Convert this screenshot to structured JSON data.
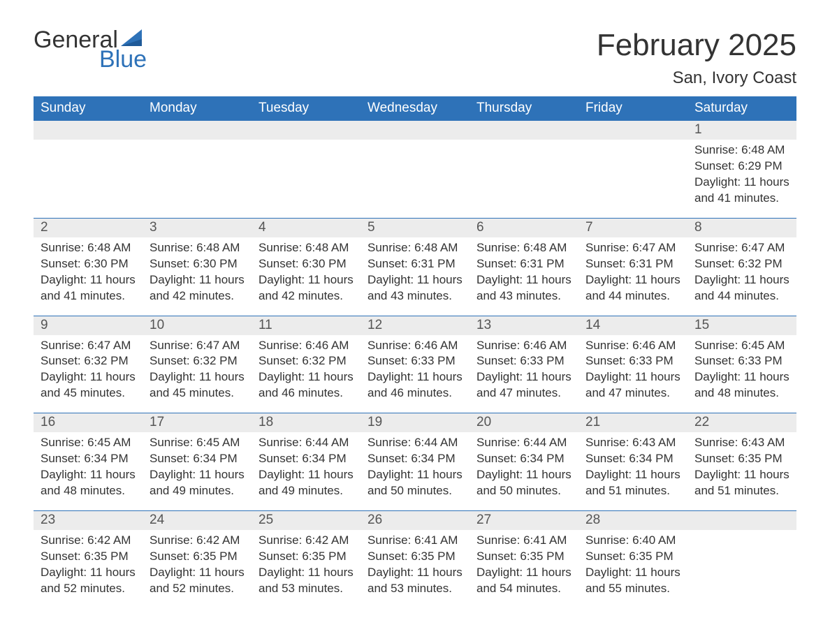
{
  "brand": {
    "word1": "General",
    "word2": "Blue",
    "accent_color": "#2e72b8"
  },
  "title": "February 2025",
  "location": "San, Ivory Coast",
  "day_headers": [
    "Sunday",
    "Monday",
    "Tuesday",
    "Wednesday",
    "Thursday",
    "Friday",
    "Saturday"
  ],
  "colors": {
    "header_bg": "#2e72b8",
    "header_text": "#ffffff",
    "row_bg": "#ececec",
    "text": "#333333",
    "week_divider": "#2e72b8"
  },
  "weeks": [
    {
      "days": [
        {},
        {},
        {},
        {},
        {},
        {},
        {
          "num": "1",
          "sunrise": "Sunrise: 6:48 AM",
          "sunset": "Sunset: 6:29 PM",
          "daylight": "Daylight: 11 hours and 41 minutes."
        }
      ]
    },
    {
      "days": [
        {
          "num": "2",
          "sunrise": "Sunrise: 6:48 AM",
          "sunset": "Sunset: 6:30 PM",
          "daylight": "Daylight: 11 hours and 41 minutes."
        },
        {
          "num": "3",
          "sunrise": "Sunrise: 6:48 AM",
          "sunset": "Sunset: 6:30 PM",
          "daylight": "Daylight: 11 hours and 42 minutes."
        },
        {
          "num": "4",
          "sunrise": "Sunrise: 6:48 AM",
          "sunset": "Sunset: 6:30 PM",
          "daylight": "Daylight: 11 hours and 42 minutes."
        },
        {
          "num": "5",
          "sunrise": "Sunrise: 6:48 AM",
          "sunset": "Sunset: 6:31 PM",
          "daylight": "Daylight: 11 hours and 43 minutes."
        },
        {
          "num": "6",
          "sunrise": "Sunrise: 6:48 AM",
          "sunset": "Sunset: 6:31 PM",
          "daylight": "Daylight: 11 hours and 43 minutes."
        },
        {
          "num": "7",
          "sunrise": "Sunrise: 6:47 AM",
          "sunset": "Sunset: 6:31 PM",
          "daylight": "Daylight: 11 hours and 44 minutes."
        },
        {
          "num": "8",
          "sunrise": "Sunrise: 6:47 AM",
          "sunset": "Sunset: 6:32 PM",
          "daylight": "Daylight: 11 hours and 44 minutes."
        }
      ]
    },
    {
      "days": [
        {
          "num": "9",
          "sunrise": "Sunrise: 6:47 AM",
          "sunset": "Sunset: 6:32 PM",
          "daylight": "Daylight: 11 hours and 45 minutes."
        },
        {
          "num": "10",
          "sunrise": "Sunrise: 6:47 AM",
          "sunset": "Sunset: 6:32 PM",
          "daylight": "Daylight: 11 hours and 45 minutes."
        },
        {
          "num": "11",
          "sunrise": "Sunrise: 6:46 AM",
          "sunset": "Sunset: 6:32 PM",
          "daylight": "Daylight: 11 hours and 46 minutes."
        },
        {
          "num": "12",
          "sunrise": "Sunrise: 6:46 AM",
          "sunset": "Sunset: 6:33 PM",
          "daylight": "Daylight: 11 hours and 46 minutes."
        },
        {
          "num": "13",
          "sunrise": "Sunrise: 6:46 AM",
          "sunset": "Sunset: 6:33 PM",
          "daylight": "Daylight: 11 hours and 47 minutes."
        },
        {
          "num": "14",
          "sunrise": "Sunrise: 6:46 AM",
          "sunset": "Sunset: 6:33 PM",
          "daylight": "Daylight: 11 hours and 47 minutes."
        },
        {
          "num": "15",
          "sunrise": "Sunrise: 6:45 AM",
          "sunset": "Sunset: 6:33 PM",
          "daylight": "Daylight: 11 hours and 48 minutes."
        }
      ]
    },
    {
      "days": [
        {
          "num": "16",
          "sunrise": "Sunrise: 6:45 AM",
          "sunset": "Sunset: 6:34 PM",
          "daylight": "Daylight: 11 hours and 48 minutes."
        },
        {
          "num": "17",
          "sunrise": "Sunrise: 6:45 AM",
          "sunset": "Sunset: 6:34 PM",
          "daylight": "Daylight: 11 hours and 49 minutes."
        },
        {
          "num": "18",
          "sunrise": "Sunrise: 6:44 AM",
          "sunset": "Sunset: 6:34 PM",
          "daylight": "Daylight: 11 hours and 49 minutes."
        },
        {
          "num": "19",
          "sunrise": "Sunrise: 6:44 AM",
          "sunset": "Sunset: 6:34 PM",
          "daylight": "Daylight: 11 hours and 50 minutes."
        },
        {
          "num": "20",
          "sunrise": "Sunrise: 6:44 AM",
          "sunset": "Sunset: 6:34 PM",
          "daylight": "Daylight: 11 hours and 50 minutes."
        },
        {
          "num": "21",
          "sunrise": "Sunrise: 6:43 AM",
          "sunset": "Sunset: 6:34 PM",
          "daylight": "Daylight: 11 hours and 51 minutes."
        },
        {
          "num": "22",
          "sunrise": "Sunrise: 6:43 AM",
          "sunset": "Sunset: 6:35 PM",
          "daylight": "Daylight: 11 hours and 51 minutes."
        }
      ]
    },
    {
      "days": [
        {
          "num": "23",
          "sunrise": "Sunrise: 6:42 AM",
          "sunset": "Sunset: 6:35 PM",
          "daylight": "Daylight: 11 hours and 52 minutes."
        },
        {
          "num": "24",
          "sunrise": "Sunrise: 6:42 AM",
          "sunset": "Sunset: 6:35 PM",
          "daylight": "Daylight: 11 hours and 52 minutes."
        },
        {
          "num": "25",
          "sunrise": "Sunrise: 6:42 AM",
          "sunset": "Sunset: 6:35 PM",
          "daylight": "Daylight: 11 hours and 53 minutes."
        },
        {
          "num": "26",
          "sunrise": "Sunrise: 6:41 AM",
          "sunset": "Sunset: 6:35 PM",
          "daylight": "Daylight: 11 hours and 53 minutes."
        },
        {
          "num": "27",
          "sunrise": "Sunrise: 6:41 AM",
          "sunset": "Sunset: 6:35 PM",
          "daylight": "Daylight: 11 hours and 54 minutes."
        },
        {
          "num": "28",
          "sunrise": "Sunrise: 6:40 AM",
          "sunset": "Sunset: 6:35 PM",
          "daylight": "Daylight: 11 hours and 55 minutes."
        },
        {}
      ]
    }
  ]
}
